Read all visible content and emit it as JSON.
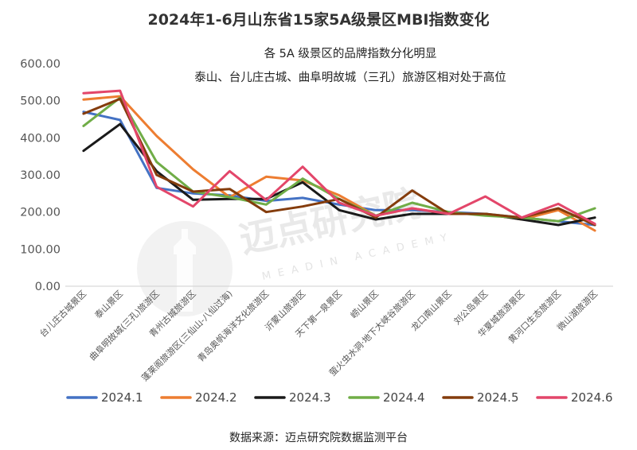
{
  "chart_data": {
    "type": "line",
    "title": "2024年1-6月山东省15家5A级景区MBI指数变化",
    "annotations": [
      "各 5A 级景区的品牌指数分化明显",
      "泰山、台儿庄古城、曲阜明故城（三孔）旅游区相对处于高位"
    ],
    "source": "数据来源：迈点研究院数据监测平台",
    "watermark": "迈点研究院",
    "watermark_sub": "MEADIN ACADEMY",
    "ylim": [
      0,
      600
    ],
    "yticks": [
      "0.00",
      "100.00",
      "200.00",
      "300.00",
      "400.00",
      "500.00",
      "600.00"
    ],
    "ytick_values": [
      0,
      100,
      200,
      300,
      400,
      500,
      600
    ],
    "grid": false,
    "legend_position": "bottom",
    "categories": [
      "台儿庄古城景区",
      "泰山景区",
      "曲阜明故城(三孔)旅游区",
      "青州古城旅游区",
      "蓬莱阁旅游区(三仙山-八仙过海)",
      "青岛奥帆海洋文化旅游区",
      "沂蒙山旅游区",
      "天下第一泉景区",
      "崂山景区",
      "萤火虫水洞·地下大峡谷旅游区",
      "龙口南山景区",
      "刘公岛景区",
      "华夏城旅游景区",
      "黄河口生态旅游区",
      "微山湖旅游区"
    ],
    "series": [
      {
        "name": "2024.1",
        "color": "#4472C4",
        "values": [
          470,
          448,
          265,
          250,
          245,
          230,
          238,
          220,
          205,
          205,
          200,
          195,
          185,
          175,
          165
        ]
      },
      {
        "name": "2024.2",
        "color": "#ED7D31",
        "values": [
          503,
          512,
          405,
          315,
          240,
          295,
          285,
          245,
          190,
          210,
          195,
          195,
          180,
          205,
          150
        ]
      },
      {
        "name": "2024.3",
        "color": "#1A1A1A",
        "values": [
          365,
          437,
          310,
          233,
          235,
          235,
          280,
          205,
          180,
          195,
          195,
          195,
          180,
          165,
          185
        ]
      },
      {
        "name": "2024.4",
        "color": "#70AD47",
        "values": [
          432,
          508,
          335,
          255,
          240,
          220,
          290,
          235,
          190,
          225,
          200,
          190,
          185,
          175,
          210
        ]
      },
      {
        "name": "2024.5",
        "color": "#843C0C",
        "values": [
          465,
          505,
          300,
          255,
          262,
          200,
          215,
          235,
          185,
          258,
          195,
          195,
          185,
          210,
          165
        ]
      },
      {
        "name": "2024.6",
        "color": "#E3466A",
        "values": [
          520,
          527,
          268,
          215,
          310,
          232,
          322,
          225,
          190,
          210,
          195,
          242,
          185,
          222,
          168
        ]
      }
    ]
  }
}
